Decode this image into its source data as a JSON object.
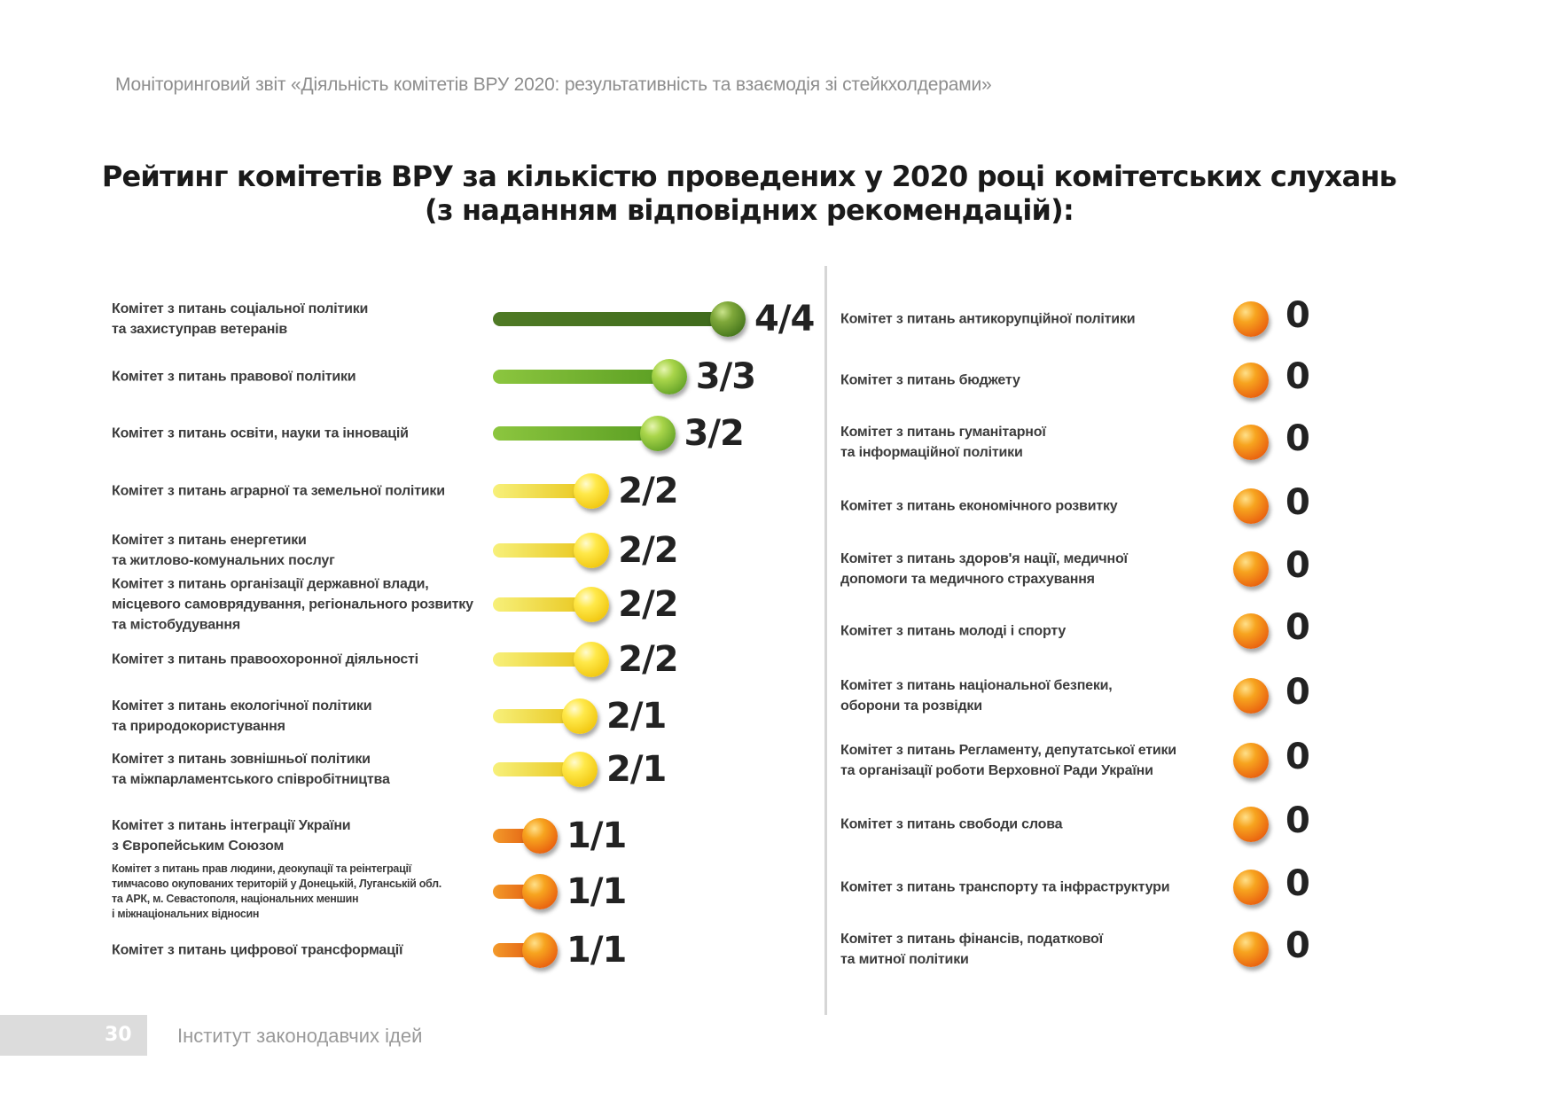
{
  "header": {
    "report_title": "Моніторинговий звіт «Діяльність комітетів ВРУ 2020: результативність та взаємодія зі стейкхолдерами»"
  },
  "title": {
    "line1": "Рейтинг комітетів ВРУ за кількістю проведених у 2020 році комітетських слухань",
    "line2": "(з наданням відповідних рекомендацій):"
  },
  "left_items": [
    {
      "label": "Комітет з питань соціальної політики\nта захиступрав ветеранів",
      "value": "4/4",
      "level": 1.0,
      "color": "dark"
    },
    {
      "label": "Комітет з питань правової політики",
      "value": "3/3",
      "level": 0.75,
      "color": "green"
    },
    {
      "label": "Комітет з питань освіти, науки та інновацій",
      "value": "3/2",
      "level": 0.7,
      "color": "green"
    },
    {
      "label": "Комітет з питань аграрної та земельної політики",
      "value": "2/2",
      "level": 0.42,
      "color": "yellow"
    },
    {
      "label": "Комітет з питань енергетики\nта житлово-комунальних послуг",
      "value": "2/2",
      "level": 0.42,
      "color": "yellow"
    },
    {
      "label": "Комітет з питань організації державної влади,\nмісцевого самоврядування, регіонального розвитку\nта містобудування",
      "value": "2/2",
      "level": 0.42,
      "color": "yellow"
    },
    {
      "label": "Комітет з питань правоохоронної діяльності",
      "value": "2/2",
      "level": 0.42,
      "color": "yellow"
    },
    {
      "label": "Комітет з питань екологічної політики\nта природокористування",
      "value": "2/1",
      "level": 0.37,
      "color": "yellow"
    },
    {
      "label": "Комітет з питань зовнішньої політики\nта міжпарламентського співробітництва",
      "value": "2/1",
      "level": 0.37,
      "color": "yellow"
    },
    {
      "label": "Комітет з питань інтеграції України\nз Європейським Союзом",
      "value": "1/1",
      "level": 0.2,
      "color": "orange"
    },
    {
      "label": "Комітет з питань прав людини, деокупації та реінтеграції\nтимчасово окупованих територій у Донецькій, Луганській обл.\nта АРК, м. Севастополя, національних меншин\nі міжнаціональних відносин",
      "value": "1/1",
      "level": 0.2,
      "color": "orange",
      "small": true
    },
    {
      "label": "Комітет з питань цифрової трансформації",
      "value": "1/1",
      "level": 0.2,
      "color": "orange"
    }
  ],
  "right_items": [
    {
      "label": "Комітет з питань антикорупційної політики",
      "value": "0"
    },
    {
      "label": "Комітет з питань бюджету",
      "value": "0"
    },
    {
      "label": "Комітет з питань гуманітарної\nта інформаційної політики",
      "value": "0"
    },
    {
      "label": "Комітет з питань економічного розвитку",
      "value": "0"
    },
    {
      "label": "Комітет з питань здоров'я нації, медичної\nдопомоги та медичного страхування",
      "value": "0"
    },
    {
      "label": "Комітет з питань молоді і спорту",
      "value": "0"
    },
    {
      "label": "Комітет з питань національної безпеки,\nоборони та розвідки",
      "value": "0"
    },
    {
      "label": "Комітет з питань Регламенту, депутатської етики\nта організації роботи Верховної Ради України",
      "value": "0"
    },
    {
      "label": "Комітет з питань свободи слова",
      "value": "0"
    },
    {
      "label": "Комітет з питань транспорту та інфраструктури",
      "value": "0"
    },
    {
      "label": "Комітет з питань фінансів, податкової\nта митної політики",
      "value": "0"
    }
  ],
  "footer": {
    "page_number": "30",
    "organization": "Інститут законодавчих ідей"
  }
}
